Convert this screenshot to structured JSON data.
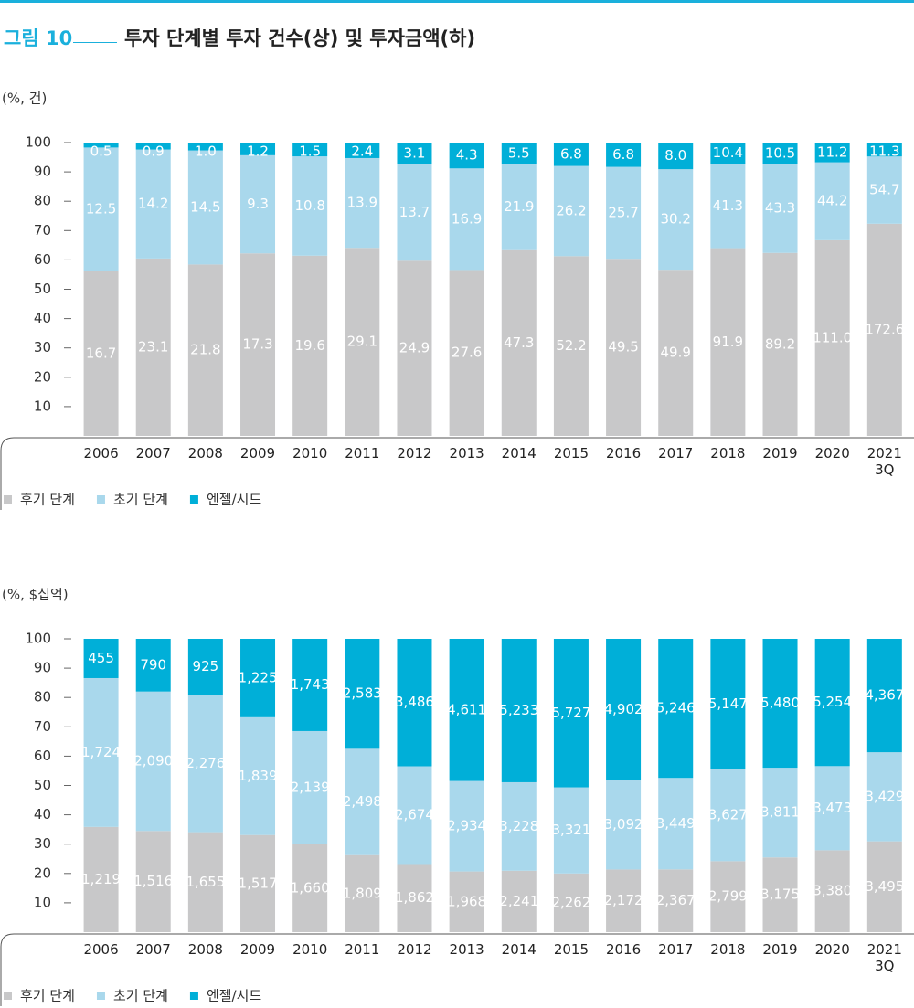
{
  "figure_label": "그림 10",
  "title": "투자 단계별 투자 건수(상) 및 투자금액(하)",
  "chart_data": [
    {
      "type": "bar",
      "stacked": "percent",
      "unit_label": "(%, 건)",
      "categories": [
        "2006",
        "2007",
        "2008",
        "2009",
        "2010",
        "2011",
        "2012",
        "2013",
        "2014",
        "2015",
        "2016",
        "2017",
        "2018",
        "2019",
        "2020",
        "2021\n3Q"
      ],
      "ylim": [
        0,
        100
      ],
      "yticks": [
        10,
        20,
        30,
        40,
        50,
        60,
        70,
        80,
        90,
        100
      ],
      "series": [
        {
          "name": "후기 단계",
          "color": "#c8c8c9",
          "values": [
            16.7,
            23.1,
            21.8,
            17.3,
            19.6,
            29.1,
            24.9,
            27.6,
            47.3,
            52.2,
            49.5,
            49.9,
            91.9,
            89.2,
            111.0,
            172.6
          ],
          "value_labels": [
            "16.7",
            "23.1",
            "21.8",
            "17.3",
            "19.6",
            "29.1",
            "24.9",
            "27.6",
            "47.3",
            "52.2",
            "49.5",
            "49.9",
            "91.9",
            "89.2",
            "111.0",
            "172.6"
          ]
        },
        {
          "name": "초기 단계",
          "color": "#a9d8ec",
          "values": [
            12.5,
            14.2,
            14.5,
            9.3,
            10.8,
            13.9,
            13.7,
            16.9,
            21.9,
            26.2,
            25.7,
            30.2,
            41.3,
            43.3,
            44.2,
            54.7
          ],
          "value_labels": [
            "12.5",
            "14.2",
            "14.5",
            "9.3",
            "10.8",
            "13.9",
            "13.7",
            "16.9",
            "21.9",
            "26.2",
            "25.7",
            "30.2",
            "41.3",
            "43.3",
            "44.2",
            "54.7"
          ]
        },
        {
          "name": "엔젤/시드",
          "color": "#00afd8",
          "values": [
            0.5,
            0.9,
            1.0,
            1.2,
            1.5,
            2.4,
            3.1,
            4.3,
            5.5,
            6.8,
            6.8,
            8.0,
            10.4,
            10.5,
            11.2,
            11.3
          ],
          "value_labels": [
            "0.5",
            "0.9",
            "1.0",
            "1.2",
            "1.5",
            "2.4",
            "3.1",
            "4.3",
            "5.5",
            "6.8",
            "6.8",
            "8.0",
            "10.4",
            "10.5",
            "11.2",
            "11.3"
          ]
        }
      ]
    },
    {
      "type": "bar",
      "stacked": "percent",
      "unit_label": "(%, $십억)",
      "categories": [
        "2006",
        "2007",
        "2008",
        "2009",
        "2010",
        "2011",
        "2012",
        "2013",
        "2014",
        "2015",
        "2016",
        "2017",
        "2018",
        "2019",
        "2020",
        "2021\n3Q"
      ],
      "ylim": [
        0,
        100
      ],
      "yticks": [
        10,
        20,
        30,
        40,
        50,
        60,
        70,
        80,
        90,
        100
      ],
      "series": [
        {
          "name": "후기 단계",
          "color": "#c8c8c9",
          "values": [
            1219,
            1516,
            1655,
            1517,
            1660,
            1809,
            1862,
            1968,
            2241,
            2262,
            2172,
            2367,
            2799,
            3175,
            3380,
            3495
          ],
          "value_labels": [
            "1,219",
            "1,516",
            "1,655",
            "1,517",
            "1,660",
            "1,809",
            "1,862",
            "1,968",
            "2,241",
            "2,262",
            "2,172",
            "2,367",
            "2,799",
            "3,175",
            "3,380",
            "3,495"
          ]
        },
        {
          "name": "초기 단계",
          "color": "#a9d8ec",
          "values": [
            1724,
            2090,
            2276,
            1839,
            2139,
            2498,
            2674,
            2934,
            3228,
            3321,
            3092,
            3449,
            3627,
            3811,
            3473,
            3429
          ],
          "value_labels": [
            "1,724",
            "2,090",
            "2,276",
            "1,839",
            "2,139",
            "2,498",
            "2,674",
            "2,934",
            "3,228",
            "3,321",
            "3,092",
            "3,449",
            "3,627",
            "3,811",
            "3,473",
            "3,429"
          ]
        },
        {
          "name": "엔젤/시드",
          "color": "#00afd8",
          "values": [
            455,
            790,
            925,
            1225,
            1743,
            2583,
            3486,
            4611,
            5233,
            5727,
            4902,
            5246,
            5147,
            5480,
            5254,
            4367
          ],
          "value_labels": [
            "455",
            "790",
            "925",
            "1,225",
            "1,743",
            "2,583",
            "3,486",
            "4,611",
            "5,233",
            "5,727",
            "4,902",
            "5,246",
            "5,147",
            "5,480",
            "5,254",
            "4,367"
          ]
        }
      ]
    }
  ]
}
